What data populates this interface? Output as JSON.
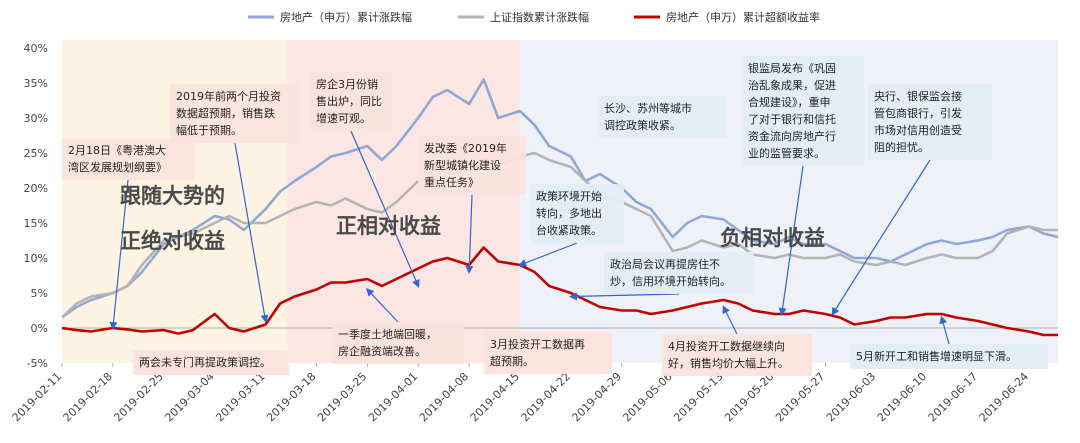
{
  "chart_data": {
    "type": "line",
    "title": "",
    "xlabel": "",
    "ylabel": "",
    "ylim": [
      -5,
      40
    ],
    "yticks": [
      -5,
      0,
      5,
      10,
      15,
      20,
      25,
      30,
      35,
      40
    ],
    "ytick_labels": [
      "-5%",
      "0%",
      "5%",
      "10%",
      "15%",
      "20%",
      "25%",
      "30%",
      "35%",
      "40%"
    ],
    "x_start": "2019-02-11",
    "x_end": "2019-06-28",
    "xticks": [
      "2019-02-11",
      "2019-02-18",
      "2019-02-25",
      "2019-03-04",
      "2019-03-11",
      "2019-03-18",
      "2019-03-25",
      "2019-04-01",
      "2019-04-08",
      "2019-04-15",
      "2019-04-22",
      "2019-04-29",
      "2019-05-06",
      "2019-05-13",
      "2019-05-20",
      "2019-05-27",
      "2019-06-03",
      "2019-06-10",
      "2019-06-17",
      "2019-06-24"
    ],
    "grid": false,
    "legend_position": "top",
    "series": [
      {
        "name": "房地产（申万）累计涨跌幅",
        "color": "#8fa8d8",
        "points": [
          [
            "2019-02-11",
            1.5
          ],
          [
            "2019-02-13",
            3
          ],
          [
            "2019-02-15",
            4
          ],
          [
            "2019-02-18",
            5
          ],
          [
            "2019-02-20",
            6
          ],
          [
            "2019-02-22",
            8
          ],
          [
            "2019-02-25",
            12
          ],
          [
            "2019-02-27",
            13
          ],
          [
            "2019-03-01",
            14
          ],
          [
            "2019-03-04",
            16
          ],
          [
            "2019-03-06",
            15.5
          ],
          [
            "2019-03-08",
            14
          ],
          [
            "2019-03-11",
            17
          ],
          [
            "2019-03-13",
            19.5
          ],
          [
            "2019-03-15",
            21
          ],
          [
            "2019-03-18",
            23
          ],
          [
            "2019-03-20",
            24.5
          ],
          [
            "2019-03-22",
            25
          ],
          [
            "2019-03-25",
            26
          ],
          [
            "2019-03-27",
            24
          ],
          [
            "2019-03-29",
            26
          ],
          [
            "2019-04-01",
            30
          ],
          [
            "2019-04-03",
            33
          ],
          [
            "2019-04-05",
            34
          ],
          [
            "2019-04-08",
            32
          ],
          [
            "2019-04-10",
            35.5
          ],
          [
            "2019-04-12",
            30
          ],
          [
            "2019-04-15",
            31
          ],
          [
            "2019-04-17",
            29
          ],
          [
            "2019-04-19",
            26
          ],
          [
            "2019-04-22",
            24.5
          ],
          [
            "2019-04-24",
            21
          ],
          [
            "2019-04-26",
            22
          ],
          [
            "2019-04-29",
            20
          ],
          [
            "2019-05-01",
            18
          ],
          [
            "2019-05-03",
            17
          ],
          [
            "2019-05-06",
            13
          ],
          [
            "2019-05-08",
            15
          ],
          [
            "2019-05-10",
            16
          ],
          [
            "2019-05-13",
            15.5
          ],
          [
            "2019-05-15",
            14
          ],
          [
            "2019-05-17",
            12.5
          ],
          [
            "2019-05-20",
            12
          ],
          [
            "2019-05-22",
            13
          ],
          [
            "2019-05-24",
            12
          ],
          [
            "2019-05-27",
            12
          ],
          [
            "2019-05-29",
            11
          ],
          [
            "2019-05-31",
            10
          ],
          [
            "2019-06-03",
            10
          ],
          [
            "2019-06-05",
            9.5
          ],
          [
            "2019-06-07",
            10.5
          ],
          [
            "2019-06-10",
            12
          ],
          [
            "2019-06-12",
            12.5
          ],
          [
            "2019-06-14",
            12
          ],
          [
            "2019-06-17",
            12.5
          ],
          [
            "2019-06-19",
            13
          ],
          [
            "2019-06-21",
            14
          ],
          [
            "2019-06-24",
            14.5
          ],
          [
            "2019-06-26",
            13.5
          ],
          [
            "2019-06-28",
            13
          ]
        ]
      },
      {
        "name": "上证指数累计涨跌幅",
        "color": "#b4b4b4",
        "points": [
          [
            "2019-02-11",
            1.5
          ],
          [
            "2019-02-13",
            3.5
          ],
          [
            "2019-02-15",
            4.5
          ],
          [
            "2019-02-18",
            5
          ],
          [
            "2019-02-20",
            6
          ],
          [
            "2019-02-22",
            9
          ],
          [
            "2019-02-25",
            12.5
          ],
          [
            "2019-02-27",
            13
          ],
          [
            "2019-03-01",
            13.5
          ],
          [
            "2019-03-04",
            15
          ],
          [
            "2019-03-06",
            16
          ],
          [
            "2019-03-08",
            15
          ],
          [
            "2019-03-11",
            15
          ],
          [
            "2019-03-13",
            16
          ],
          [
            "2019-03-15",
            17
          ],
          [
            "2019-03-18",
            18
          ],
          [
            "2019-03-20",
            17.5
          ],
          [
            "2019-03-22",
            18.5
          ],
          [
            "2019-03-25",
            17
          ],
          [
            "2019-03-27",
            16.5
          ],
          [
            "2019-03-29",
            18
          ],
          [
            "2019-04-01",
            21
          ],
          [
            "2019-04-03",
            22
          ],
          [
            "2019-04-05",
            22.5
          ],
          [
            "2019-04-08",
            23
          ],
          [
            "2019-04-10",
            24
          ],
          [
            "2019-04-12",
            23
          ],
          [
            "2019-04-15",
            24.5
          ],
          [
            "2019-04-17",
            25
          ],
          [
            "2019-04-19",
            24
          ],
          [
            "2019-04-22",
            23
          ],
          [
            "2019-04-24",
            21
          ],
          [
            "2019-04-26",
            19
          ],
          [
            "2019-04-29",
            18
          ],
          [
            "2019-05-01",
            17
          ],
          [
            "2019-05-03",
            16
          ],
          [
            "2019-05-06",
            11
          ],
          [
            "2019-05-08",
            11.5
          ],
          [
            "2019-05-10",
            12.5
          ],
          [
            "2019-05-13",
            11.5
          ],
          [
            "2019-05-15",
            12
          ],
          [
            "2019-05-17",
            10.5
          ],
          [
            "2019-05-20",
            10
          ],
          [
            "2019-05-22",
            10.5
          ],
          [
            "2019-05-24",
            10
          ],
          [
            "2019-05-27",
            10
          ],
          [
            "2019-05-29",
            10.5
          ],
          [
            "2019-05-31",
            9.5
          ],
          [
            "2019-06-03",
            9
          ],
          [
            "2019-06-05",
            9.5
          ],
          [
            "2019-06-07",
            9
          ],
          [
            "2019-06-10",
            10
          ],
          [
            "2019-06-12",
            10.5
          ],
          [
            "2019-06-14",
            10
          ],
          [
            "2019-06-17",
            10
          ],
          [
            "2019-06-19",
            11
          ],
          [
            "2019-06-21",
            13.5
          ],
          [
            "2019-06-24",
            14.5
          ],
          [
            "2019-06-26",
            14
          ],
          [
            "2019-06-28",
            14
          ]
        ]
      },
      {
        "name": "房地产（申万）累计超额收益率",
        "color": "#c00000",
        "points": [
          [
            "2019-02-11",
            0
          ],
          [
            "2019-02-13",
            -0.3
          ],
          [
            "2019-02-15",
            -0.5
          ],
          [
            "2019-02-18",
            0
          ],
          [
            "2019-02-20",
            -0.2
          ],
          [
            "2019-02-22",
            -0.5
          ],
          [
            "2019-02-25",
            -0.3
          ],
          [
            "2019-02-27",
            -0.8
          ],
          [
            "2019-03-01",
            -0.3
          ],
          [
            "2019-03-04",
            2
          ],
          [
            "2019-03-06",
            0
          ],
          [
            "2019-03-08",
            -0.5
          ],
          [
            "2019-03-11",
            0.5
          ],
          [
            "2019-03-13",
            3.5
          ],
          [
            "2019-03-15",
            4.5
          ],
          [
            "2019-03-18",
            5.5
          ],
          [
            "2019-03-20",
            6.5
          ],
          [
            "2019-03-22",
            6.5
          ],
          [
            "2019-03-25",
            7
          ],
          [
            "2019-03-27",
            6
          ],
          [
            "2019-03-29",
            7
          ],
          [
            "2019-04-01",
            8.5
          ],
          [
            "2019-04-03",
            9.5
          ],
          [
            "2019-04-05",
            10
          ],
          [
            "2019-04-08",
            9
          ],
          [
            "2019-04-10",
            11.5
          ],
          [
            "2019-04-12",
            9.5
          ],
          [
            "2019-04-15",
            9
          ],
          [
            "2019-04-17",
            8
          ],
          [
            "2019-04-19",
            6
          ],
          [
            "2019-04-22",
            5
          ],
          [
            "2019-04-24",
            4
          ],
          [
            "2019-04-26",
            3
          ],
          [
            "2019-04-29",
            2.5
          ],
          [
            "2019-05-01",
            2.5
          ],
          [
            "2019-05-03",
            2
          ],
          [
            "2019-05-06",
            2.5
          ],
          [
            "2019-05-08",
            3
          ],
          [
            "2019-05-10",
            3.5
          ],
          [
            "2019-05-13",
            4
          ],
          [
            "2019-05-15",
            3.5
          ],
          [
            "2019-05-17",
            2.5
          ],
          [
            "2019-05-20",
            2
          ],
          [
            "2019-05-22",
            2
          ],
          [
            "2019-05-24",
            2.5
          ],
          [
            "2019-05-27",
            2
          ],
          [
            "2019-05-29",
            1.5
          ],
          [
            "2019-05-31",
            0.5
          ],
          [
            "2019-06-03",
            1
          ],
          [
            "2019-06-05",
            1.5
          ],
          [
            "2019-06-07",
            1.5
          ],
          [
            "2019-06-10",
            2
          ],
          [
            "2019-06-12",
            2
          ],
          [
            "2019-06-14",
            1.5
          ],
          [
            "2019-06-17",
            1
          ],
          [
            "2019-06-19",
            0.5
          ],
          [
            "2019-06-21",
            0
          ],
          [
            "2019-06-24",
            -0.5
          ],
          [
            "2019-06-26",
            -1
          ],
          [
            "2019-06-28",
            -1
          ]
        ]
      }
    ],
    "regions": [
      {
        "label": "跟随大势的",
        "label2": "正绝对收益",
        "start": "2019-02-11",
        "end": "2019-03-14",
        "color": "#fdf3e3"
      },
      {
        "label": "正相对收益",
        "start": "2019-03-14",
        "end": "2019-04-15",
        "color": "#fbe6e4"
      },
      {
        "label": "负相对收益",
        "start": "2019-04-15",
        "end": "2019-06-28",
        "color": "#eef1f8"
      }
    ],
    "annotations": [
      {
        "id": "a1",
        "text": [
          "2月18日《粤港澳大",
          "湾区发展规划纲要》"
        ],
        "color": "#fbe3dc",
        "target": [
          "2019-02-18",
          0
        ]
      },
      {
        "id": "a2",
        "text": [
          "2019年前两个月投资",
          "数据超预期，销售跌",
          "幅低于预期。"
        ],
        "color": "#fbe3dc",
        "target": [
          "2019-03-11",
          1
        ]
      },
      {
        "id": "a3",
        "text": [
          "两会未专门再提政策调控。"
        ],
        "color": "#fbe3dc",
        "target": null
      },
      {
        "id": "a4",
        "text": [
          "房企3月份销",
          "售出炉，同比",
          "增速可观。"
        ],
        "color": "#fbe3dc",
        "target": [
          "2019-04-01",
          6
        ]
      },
      {
        "id": "a5",
        "text": [
          "一季度土地端回暖，",
          "房企融资端改善。"
        ],
        "color": "#fbe3dc",
        "target": [
          "2019-03-25",
          5.5
        ]
      },
      {
        "id": "a6",
        "text": [
          "发改委《2019年",
          "新型城镇化建设",
          "重点任务》"
        ],
        "color": "#fbe3dc",
        "target": [
          "2019-04-08",
          8
        ]
      },
      {
        "id": "a7",
        "text": [
          "3月投资开工数据再",
          "超预期。"
        ],
        "color": "#fbe3dc",
        "target": null
      },
      {
        "id": "a8",
        "text": [
          "政策环境开始",
          "转向，多地出",
          "台收紧政策。"
        ],
        "color": "#e3ebf6",
        "target": [
          "2019-04-15",
          9
        ]
      },
      {
        "id": "a9",
        "text": [
          "长沙、苏州等城市",
          "调控政策收紧。"
        ],
        "color": "#e3ebf6",
        "target": null
      },
      {
        "id": "a10",
        "text": [
          "政治局会议再提房住不",
          "炒，信用环境开始转向。"
        ],
        "color": "#e3ebf6",
        "target": [
          "2019-04-22",
          4.5
        ]
      },
      {
        "id": "a11",
        "text": [
          "4月投资开工数据继续向",
          "好，销售均价大幅上升。"
        ],
        "color": "#fbe3dc",
        "target": [
          "2019-05-13",
          3
        ]
      },
      {
        "id": "a12",
        "text": [
          "银监局发布《巩固",
          "治乱象成果，促进",
          "合规建设》，重申",
          "了对于银行和信托",
          "资金流向房地产行",
          "业的监管要求。"
        ],
        "color": "#e3ebf6",
        "target": [
          "2019-05-21",
          2
        ]
      },
      {
        "id": "a13",
        "text": [
          "央行、银保监会接",
          "管包商银行，引发",
          "市场对信用创造受",
          "阻的担忧。"
        ],
        "color": "#e3ebf6",
        "target": [
          "2019-05-28",
          2
        ]
      },
      {
        "id": "a14",
        "text": [
          "5月新开工和销售增速明显下滑。"
        ],
        "color": "#e3ebf6",
        "target": [
          "2019-06-12",
          1.5
        ]
      }
    ]
  }
}
